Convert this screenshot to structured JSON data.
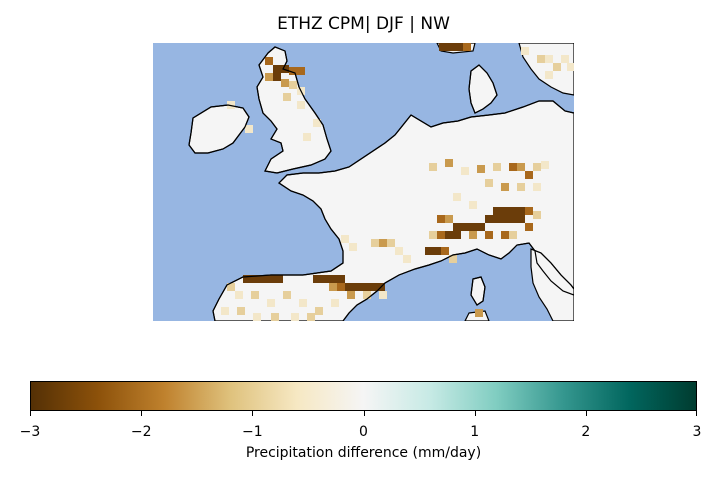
{
  "title": "ETHZ CPM| DJF | NW",
  "colorbar": {
    "label": "Precipitation difference (mm/day)",
    "min": -3,
    "max": 3,
    "ticks": [
      "−3",
      "−2",
      "−1",
      "0",
      "1",
      "2",
      "3"
    ],
    "colormap": "BrBG",
    "stops": [
      "#543005",
      "#8c510a",
      "#bf812d",
      "#dfc27d",
      "#f6e8c3",
      "#f5f5f5",
      "#c7eae5",
      "#80cdc1",
      "#35978f",
      "#01665e",
      "#003c30"
    ]
  },
  "map": {
    "region": "Western Europe",
    "ocean_color": "#97b6e2",
    "coastline_color": "#000000"
  }
}
